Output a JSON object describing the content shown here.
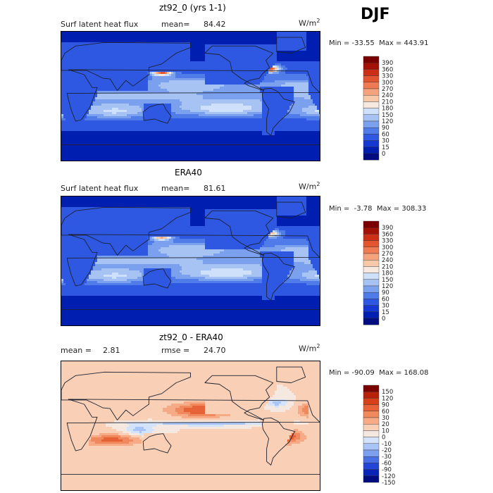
{
  "season": "DJF",
  "colors": {
    "flux_scale": [
      "#000c80",
      "#001fb0",
      "#1538d2",
      "#2e58e2",
      "#4f7ce8",
      "#7ba0ee",
      "#a6c3f4",
      "#cfe0fa",
      "#f7e9dd",
      "#f8c9a9",
      "#f5a37d",
      "#ef7b54",
      "#e2552f",
      "#cc2f15",
      "#a31005",
      "#7a0000"
    ],
    "diff_scale": [
      "#000c80",
      "#0a24b8",
      "#2446d8",
      "#4870e4",
      "#7c9ff0",
      "#a9c4f6",
      "#d3e3fb",
      "#f5e8e0",
      "#f9cfb5",
      "#f6ab86",
      "#f08a5e",
      "#e86237",
      "#d8401a",
      "#b82108",
      "#7a0000"
    ],
    "coast": "#1c2230"
  },
  "chart_data": [
    {
      "type": "heatmap",
      "title": "zt92_0 (yrs 1-1)",
      "variable": "Surf latent heat flux",
      "mean_label": "mean=",
      "mean": "84.42",
      "units": "W/m",
      "units_sup": "2",
      "min_label": "Min =",
      "min": "-33.55",
      "max_label": "Max =",
      "max": "443.91",
      "colorbar_ticks": [
        "390",
        "360",
        "330",
        "300",
        "270",
        "240",
        "210",
        "180",
        "150",
        "120",
        "90",
        "60",
        "30",
        "15",
        "0"
      ],
      "colorbar_colors": "flux_scale",
      "pattern": "model"
    },
    {
      "type": "heatmap",
      "title": "ERA40",
      "variable": "Surf latent heat flux",
      "mean_label": "mean=",
      "mean": "81.61",
      "units": "W/m",
      "units_sup": "2",
      "min_label": "Min =",
      "min": "-3.78",
      "max_label": "Max =",
      "max": "308.33",
      "colorbar_ticks": [
        "390",
        "360",
        "330",
        "300",
        "270",
        "240",
        "210",
        "180",
        "150",
        "120",
        "90",
        "60",
        "30",
        "15",
        "0"
      ],
      "colorbar_colors": "flux_scale",
      "pattern": "obs"
    },
    {
      "type": "heatmap",
      "title": "zt92_0 - ERA40",
      "variable": "",
      "mean_label": "mean =",
      "mean": "2.81",
      "rmse_label": "rmse =",
      "rmse": "24.70",
      "units": "W/m",
      "units_sup": "2",
      "min_label": "Min =",
      "min": "-90.09",
      "max_label": "Max =",
      "max": "168.08",
      "colorbar_ticks": [
        "150",
        "120",
        "90",
        "60",
        "30",
        "20",
        "10",
        "0",
        "-10",
        "-20",
        "-30",
        "-60",
        "-90",
        "-120",
        "-150"
      ],
      "colorbar_colors": "diff_scale",
      "pattern": "diff"
    }
  ]
}
